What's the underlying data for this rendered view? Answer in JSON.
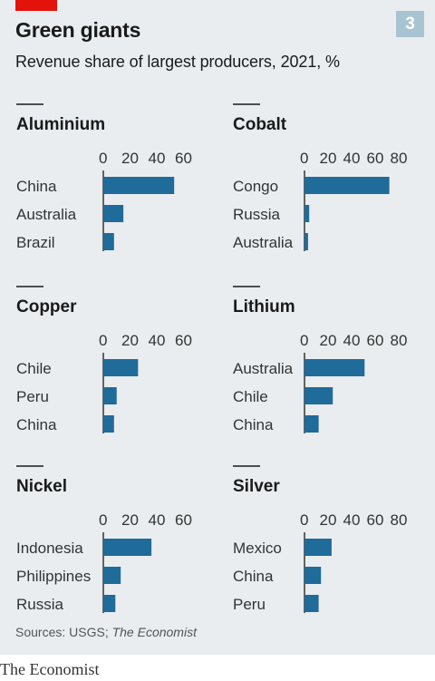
{
  "header": {
    "chart_number": "3",
    "title": "Green giants",
    "subtitle": "Revenue share of largest producers, 2021, %"
  },
  "footer": {
    "source_prefix": "Sources: USGS;",
    "source_publication": "The Economist",
    "logo": "The Economist"
  },
  "colors": {
    "bar": "#1f6b9a",
    "panel": "#e9edf0",
    "accent": "#e3120b",
    "badge": "#a8c4d3"
  },
  "chart_data": [
    {
      "type": "bar",
      "title": "Aluminium",
      "categories": [
        "China",
        "Australia",
        "Brazil"
      ],
      "values": [
        53,
        15,
        8
      ],
      "xticks": [
        0,
        20,
        40,
        60
      ],
      "xlim": [
        0,
        60
      ]
    },
    {
      "type": "bar",
      "title": "Cobalt",
      "categories": [
        "Congo",
        "Russia",
        "Australia"
      ],
      "values": [
        72,
        4,
        3
      ],
      "xticks": [
        0,
        20,
        40,
        60,
        80
      ],
      "xlim": [
        0,
        80
      ]
    },
    {
      "type": "bar",
      "title": "Copper",
      "categories": [
        "Chile",
        "Peru",
        "China"
      ],
      "values": [
        26,
        10,
        8
      ],
      "xticks": [
        0,
        20,
        40,
        60
      ],
      "xlim": [
        0,
        60
      ]
    },
    {
      "type": "bar",
      "title": "Lithium",
      "categories": [
        "Australia",
        "Chile",
        "China"
      ],
      "values": [
        51,
        24,
        12
      ],
      "xticks": [
        0,
        20,
        40,
        60,
        80
      ],
      "xlim": [
        0,
        80
      ]
    },
    {
      "type": "bar",
      "title": "Nickel",
      "categories": [
        "Indonesia",
        "Philippines",
        "Russia"
      ],
      "values": [
        36,
        13,
        9
      ],
      "xticks": [
        0,
        20,
        40,
        60
      ],
      "xlim": [
        0,
        60
      ]
    },
    {
      "type": "bar",
      "title": "Silver",
      "categories": [
        "Mexico",
        "China",
        "Peru"
      ],
      "values": [
        23,
        14,
        12
      ],
      "xticks": [
        0,
        20,
        40,
        60,
        80
      ],
      "xlim": [
        0,
        80
      ]
    }
  ]
}
